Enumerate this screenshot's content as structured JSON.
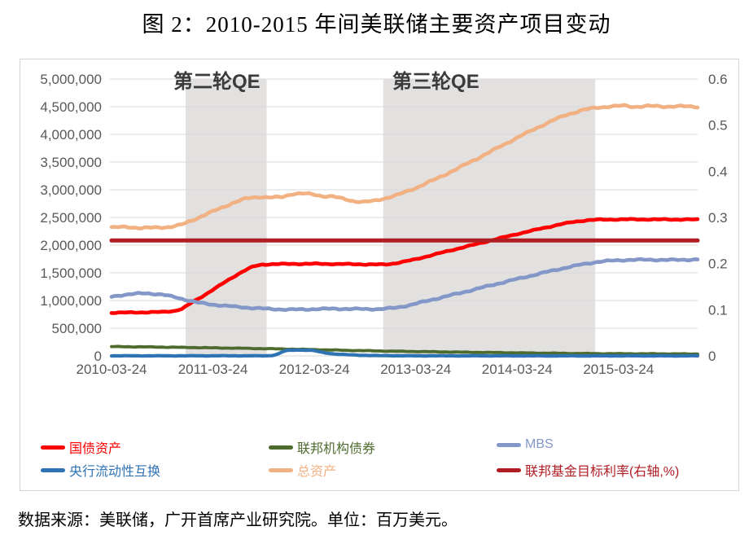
{
  "title": "图 2：2010-2015 年间美联储主要资产项目变动",
  "footer": "数据来源：美联储，广开首席产业研究院。单位：百万美元。",
  "chart_data": {
    "type": "line",
    "title": "图 2：2010-2015 年间美联储主要资产项目变动",
    "unit_note": "百万美元",
    "grid": true,
    "legend_position": "bottom",
    "x_axis": {
      "tick_labels": [
        "2010-03-24",
        "2011-03-24",
        "2012-03-24",
        "2013-03-24",
        "2014-03-24",
        "2015-03-24"
      ],
      "tick_t": [
        0,
        1,
        2,
        3,
        4,
        5
      ],
      "t_max": 5.78
    },
    "y_axis_left": {
      "min": 0,
      "max": 5000000,
      "step": 500000,
      "tick_labels": [
        "0",
        "500,000",
        "1,000,000",
        "1,500,000",
        "2,000,000",
        "2,500,000",
        "3,000,000",
        "3,500,000",
        "4,000,000",
        "4,500,000",
        "5,000,000"
      ]
    },
    "y_axis_right": {
      "min": 0,
      "max": 0.6,
      "step": 0.1,
      "tick_labels": [
        "0",
        "0.1",
        "0.2",
        "0.3",
        "0.4",
        "0.5",
        "0.6"
      ]
    },
    "qe_regions": [
      {
        "label": "第二轮QE",
        "t_start": 0.73,
        "t_end": 1.53,
        "label_t": 0.61
      },
      {
        "label": "第三轮QE",
        "t_start": 2.68,
        "t_end": 4.77,
        "label_t": 2.77
      }
    ],
    "colors": {
      "grid": "#D9D9D9",
      "region_fill": "#E3E0E0",
      "tick_text": "#595959",
      "region_label": "#3B3B3B",
      "box_border": "#D6D3D3"
    },
    "series": [
      {
        "name": "国债资产",
        "color": "#FE0000",
        "axis": "left",
        "width": 4.6,
        "wiggle": 0.7,
        "points": [
          [
            0,
            779000
          ],
          [
            0.3,
            786000
          ],
          [
            0.5,
            792000
          ],
          [
            0.62,
            812000
          ],
          [
            0.7,
            852000
          ],
          [
            0.8,
            972000
          ],
          [
            0.9,
            1080000
          ],
          [
            1.0,
            1195000
          ],
          [
            1.1,
            1310000
          ],
          [
            1.2,
            1425000
          ],
          [
            1.3,
            1532000
          ],
          [
            1.4,
            1615000
          ],
          [
            1.48,
            1648000
          ],
          [
            1.6,
            1658000
          ],
          [
            1.8,
            1661000
          ],
          [
            2.0,
            1663000
          ],
          [
            2.2,
            1659000
          ],
          [
            2.4,
            1656000
          ],
          [
            2.6,
            1650000
          ],
          [
            2.72,
            1652000
          ],
          [
            2.85,
            1688000
          ],
          [
            3.0,
            1745000
          ],
          [
            3.2,
            1838000
          ],
          [
            3.4,
            1930000
          ],
          [
            3.6,
            2020000
          ],
          [
            3.8,
            2112000
          ],
          [
            4.0,
            2200000
          ],
          [
            4.2,
            2285000
          ],
          [
            4.4,
            2365000
          ],
          [
            4.55,
            2418000
          ],
          [
            4.7,
            2452000
          ],
          [
            4.85,
            2462000
          ],
          [
            5.1,
            2465000
          ],
          [
            5.4,
            2463000
          ],
          [
            5.78,
            2462000
          ]
        ]
      },
      {
        "name": "联邦机构债券",
        "color": "#4E6B2E",
        "axis": "left",
        "width": 3.8,
        "wiggle": 0.35,
        "points": [
          [
            0,
            168000
          ],
          [
            0.3,
            163000
          ],
          [
            0.6,
            156000
          ],
          [
            0.9,
            148000
          ],
          [
            1.2,
            140000
          ],
          [
            1.5,
            131000
          ],
          [
            1.8,
            121000
          ],
          [
            2.1,
            109000
          ],
          [
            2.4,
            97000
          ],
          [
            2.7,
            87000
          ],
          [
            3.0,
            79000
          ],
          [
            3.3,
            71000
          ],
          [
            3.6,
            64000
          ],
          [
            3.9,
            57000
          ],
          [
            4.2,
            51000
          ],
          [
            4.5,
            45000
          ],
          [
            4.8,
            41000
          ],
          [
            5.1,
            39000
          ],
          [
            5.4,
            37000
          ],
          [
            5.78,
            34000
          ]
        ]
      },
      {
        "name": "MBS",
        "color": "#8398C8",
        "axis": "left",
        "width": 4.6,
        "wiggle": 1.0,
        "points": [
          [
            0,
            1069000
          ],
          [
            0.12,
            1103000
          ],
          [
            0.25,
            1124000
          ],
          [
            0.35,
            1130000
          ],
          [
            0.5,
            1108000
          ],
          [
            0.62,
            1062000
          ],
          [
            0.75,
            1005000
          ],
          [
            0.85,
            962000
          ],
          [
            1.0,
            925000
          ],
          [
            1.2,
            891000
          ],
          [
            1.4,
            863000
          ],
          [
            1.6,
            844000
          ],
          [
            1.75,
            836000
          ],
          [
            1.9,
            840000
          ],
          [
            2.05,
            847000
          ],
          [
            2.2,
            851000
          ],
          [
            2.35,
            848000
          ],
          [
            2.5,
            845000
          ],
          [
            2.65,
            846000
          ],
          [
            2.8,
            868000
          ],
          [
            2.95,
            920000
          ],
          [
            3.1,
            988000
          ],
          [
            3.3,
            1075000
          ],
          [
            3.5,
            1163000
          ],
          [
            3.7,
            1255000
          ],
          [
            3.9,
            1345000
          ],
          [
            4.1,
            1432000
          ],
          [
            4.3,
            1520000
          ],
          [
            4.5,
            1601000
          ],
          [
            4.65,
            1655000
          ],
          [
            4.8,
            1700000
          ],
          [
            4.95,
            1722000
          ],
          [
            5.1,
            1733000
          ],
          [
            5.3,
            1736000
          ],
          [
            5.5,
            1731000
          ],
          [
            5.65,
            1736000
          ],
          [
            5.78,
            1741000
          ]
        ]
      },
      {
        "name": "央行流动性互换",
        "color": "#2E74B5",
        "axis": "left",
        "width": 4.2,
        "wiggle": 0.25,
        "points": [
          [
            0,
            1000
          ],
          [
            1.5,
            1500
          ],
          [
            1.58,
            5000
          ],
          [
            1.64,
            30000
          ],
          [
            1.7,
            88000
          ],
          [
            1.76,
            103000
          ],
          [
            1.84,
            107000
          ],
          [
            1.92,
            104000
          ],
          [
            1.99,
            99000
          ],
          [
            2.06,
            70000
          ],
          [
            2.13,
            47000
          ],
          [
            2.22,
            32000
          ],
          [
            2.32,
            21000
          ],
          [
            2.45,
            12000
          ],
          [
            2.6,
            6000
          ],
          [
            2.8,
            2500
          ],
          [
            3.0,
            1200
          ],
          [
            3.5,
            800
          ],
          [
            4.0,
            600
          ],
          [
            5.78,
            500
          ]
        ]
      },
      {
        "name": "总资产",
        "color": "#F2B183",
        "axis": "left",
        "width": 4.6,
        "wiggle": 1.2,
        "points": [
          [
            0,
            2318000
          ],
          [
            0.15,
            2330000
          ],
          [
            0.3,
            2308000
          ],
          [
            0.45,
            2318000
          ],
          [
            0.58,
            2328000
          ],
          [
            0.68,
            2362000
          ],
          [
            0.78,
            2438000
          ],
          [
            0.9,
            2528000
          ],
          [
            1.05,
            2650000
          ],
          [
            1.2,
            2762000
          ],
          [
            1.33,
            2845000
          ],
          [
            1.45,
            2872000
          ],
          [
            1.58,
            2858000
          ],
          [
            1.68,
            2868000
          ],
          [
            1.78,
            2925000
          ],
          [
            1.88,
            2932000
          ],
          [
            1.98,
            2918000
          ],
          [
            2.08,
            2886000
          ],
          [
            2.18,
            2878000
          ],
          [
            2.28,
            2838000
          ],
          [
            2.38,
            2798000
          ],
          [
            2.48,
            2778000
          ],
          [
            2.58,
            2795000
          ],
          [
            2.68,
            2838000
          ],
          [
            2.82,
            2905000
          ],
          [
            3.0,
            3032000
          ],
          [
            3.2,
            3195000
          ],
          [
            3.4,
            3372000
          ],
          [
            3.6,
            3558000
          ],
          [
            3.8,
            3748000
          ],
          [
            4.0,
            3940000
          ],
          [
            4.2,
            4122000
          ],
          [
            4.35,
            4252000
          ],
          [
            4.5,
            4362000
          ],
          [
            4.65,
            4442000
          ],
          [
            4.78,
            4482000
          ],
          [
            4.92,
            4505000
          ],
          [
            5.05,
            4518000
          ],
          [
            5.15,
            4498000
          ],
          [
            5.3,
            4512000
          ],
          [
            5.45,
            4502000
          ],
          [
            5.6,
            4508000
          ],
          [
            5.78,
            4498000
          ]
        ]
      },
      {
        "name": "联邦基金目标利率(右轴,%)",
        "color": "#B01E24",
        "axis": "right",
        "width": 5.0,
        "wiggle": 0,
        "points": [
          [
            0,
            0.25
          ],
          [
            5.78,
            0.25
          ]
        ]
      }
    ]
  }
}
